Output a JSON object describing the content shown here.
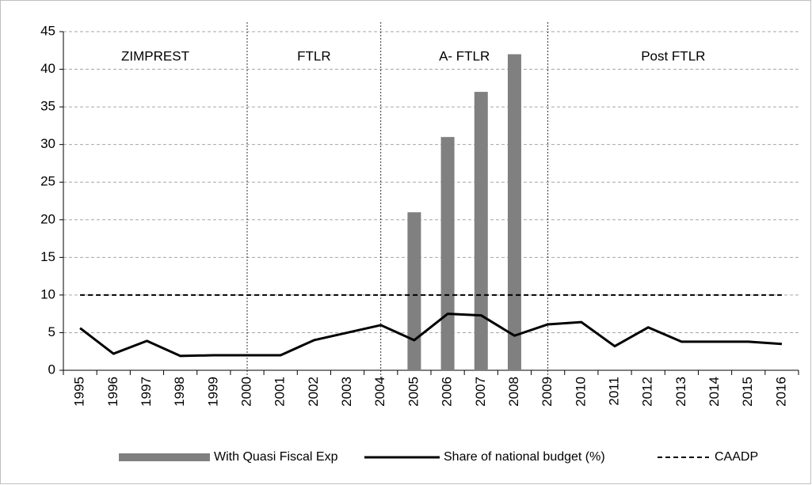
{
  "chart_data": {
    "type": "bar_line",
    "categories": [
      "1995",
      "1996",
      "1997",
      "1998",
      "1999",
      "2000",
      "2001",
      "2002",
      "2003",
      "2004",
      "2005",
      "2006",
      "2007",
      "2008",
      "2009",
      "2010",
      "2011",
      "2012",
      "2013",
      "2014",
      "2015",
      "2016"
    ],
    "series": [
      {
        "name": "With Quasi Fiscal Exp",
        "type": "bar",
        "color": "#808080",
        "values": [
          null,
          null,
          null,
          null,
          null,
          null,
          null,
          null,
          null,
          null,
          21,
          31,
          37,
          42,
          null,
          null,
          null,
          null,
          null,
          null,
          null,
          null
        ]
      },
      {
        "name": "Share of national budget (%)",
        "type": "line",
        "color": "#000000",
        "values": [
          5.6,
          2.2,
          3.9,
          1.9,
          2.0,
          2.0,
          2.0,
          4.0,
          5.0,
          6.0,
          4.0,
          7.5,
          7.3,
          4.6,
          6.1,
          6.4,
          3.2,
          5.7,
          3.8,
          3.8,
          3.8,
          3.5
        ]
      },
      {
        "name": "CAADP",
        "type": "dashed-line",
        "color": "#000000",
        "values": [
          10,
          10,
          10,
          10,
          10,
          10,
          10,
          10,
          10,
          10,
          10,
          10,
          10,
          10,
          10,
          10,
          10,
          10,
          10,
          10,
          10,
          10
        ]
      }
    ],
    "periods": [
      "ZIMPREST",
      "FTLR",
      "A- FTLR",
      "Post FTLR"
    ],
    "period_dividers": [
      "2000",
      "2004",
      "2009"
    ],
    "ylim": [
      0,
      45
    ],
    "yticks": [
      0,
      5,
      10,
      15,
      20,
      25,
      30,
      35,
      40,
      45
    ],
    "grid": true,
    "legend": "bottom"
  }
}
